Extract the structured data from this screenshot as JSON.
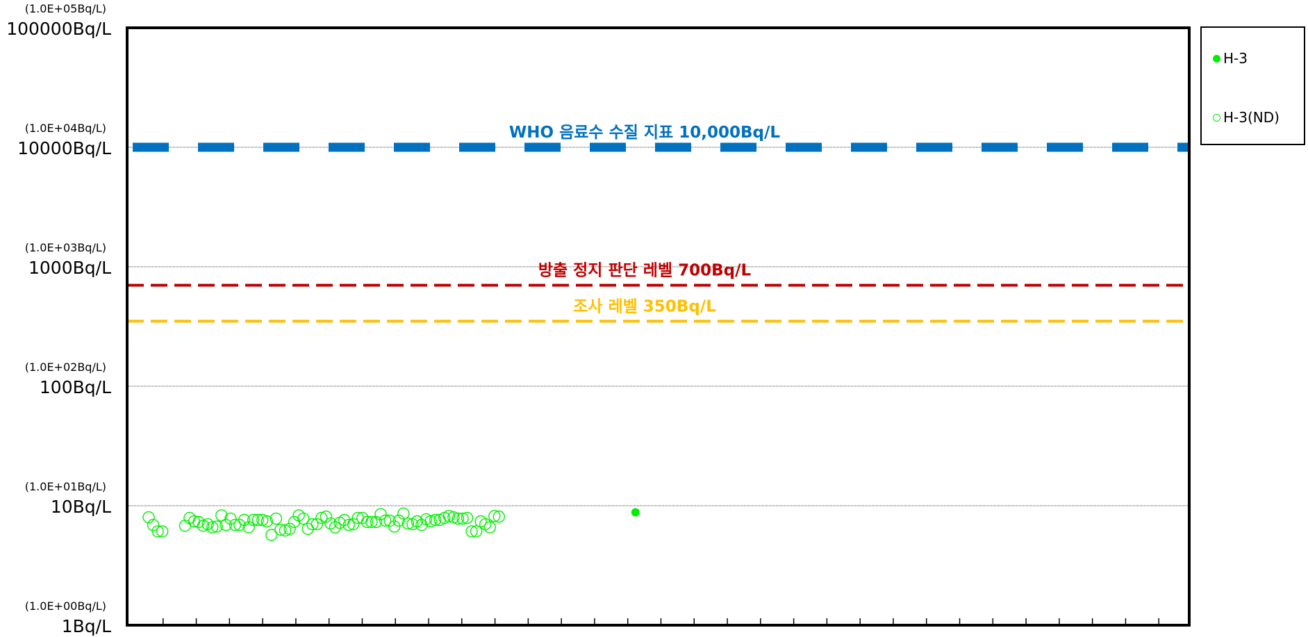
{
  "chart_data": {
    "type": "scatter",
    "title": "",
    "xlabel": "",
    "ylabel": "",
    "y_scale": "log",
    "ylim": [
      1,
      100000
    ],
    "x_tick_count": 31,
    "y_ticks": [
      {
        "value": 100000,
        "label": "100000Bq/L",
        "sublabel": "(1.0E+05Bq/L)"
      },
      {
        "value": 10000,
        "label": "10000Bq/L",
        "sublabel": "(1.0E+04Bq/L)"
      },
      {
        "value": 1000,
        "label": "1000Bq/L",
        "sublabel": "(1.0E+03Bq/L)"
      },
      {
        "value": 100,
        "label": "100Bq/L",
        "sublabel": "(1.0E+02Bq/L)"
      },
      {
        "value": 10,
        "label": "10Bq/L",
        "sublabel": "(1.0E+01Bq/L)"
      },
      {
        "value": 1,
        "label": "1Bq/L",
        "sublabel": "(1.0E+00Bq/L)"
      }
    ],
    "grid": true,
    "reference_lines": [
      {
        "label": "WHO 음료수 수질 지표 10,000Bq/L",
        "value": 10000,
        "color": "#0070c0",
        "style": "thick-dash"
      },
      {
        "label": "방출 정지 판단 레벨 700Bq/L",
        "value": 700,
        "color": "#c00000",
        "style": "dash"
      },
      {
        "label": "조사 레벨 350Bq/L",
        "value": 350,
        "color": "#ffc000",
        "style": "dash"
      }
    ],
    "legend_position": "right",
    "series": [
      {
        "name": "H-3",
        "color": "#00ee00",
        "marker": "filled-circle",
        "points": [
          [
            108,
            8.8
          ]
        ]
      },
      {
        "name": "H-3(ND)",
        "color": "#00ee00",
        "marker": "open-circle",
        "points": [
          [
            1,
            8.0
          ],
          [
            2,
            6.9
          ],
          [
            3,
            6.1
          ],
          [
            4,
            6.1
          ],
          [
            9,
            6.8
          ],
          [
            10,
            7.9
          ],
          [
            11,
            7.4
          ],
          [
            12,
            7.3
          ],
          [
            13,
            6.8
          ],
          [
            14,
            7.0
          ],
          [
            15,
            6.6
          ],
          [
            16,
            6.7
          ],
          [
            17,
            8.3
          ],
          [
            18,
            6.9
          ],
          [
            19,
            7.8
          ],
          [
            20,
            6.9
          ],
          [
            21,
            6.9
          ],
          [
            22,
            7.6
          ],
          [
            23,
            6.6
          ],
          [
            24,
            7.6
          ],
          [
            25,
            7.6
          ],
          [
            26,
            7.6
          ],
          [
            27,
            7.4
          ],
          [
            28,
            5.7
          ],
          [
            29,
            7.8
          ],
          [
            30,
            6.3
          ],
          [
            31,
            6.2
          ],
          [
            32,
            6.4
          ],
          [
            33,
            7.3
          ],
          [
            34,
            8.3
          ],
          [
            35,
            7.8
          ],
          [
            36,
            6.4
          ],
          [
            37,
            7.0
          ],
          [
            38,
            7.0
          ],
          [
            39,
            7.9
          ],
          [
            40,
            8.1
          ],
          [
            41,
            7.1
          ],
          [
            42,
            6.6
          ],
          [
            43,
            7.2
          ],
          [
            44,
            7.6
          ],
          [
            45,
            6.9
          ],
          [
            46,
            7.0
          ],
          [
            47,
            7.9
          ],
          [
            48,
            7.9
          ],
          [
            49,
            7.3
          ],
          [
            50,
            7.3
          ],
          [
            51,
            7.3
          ],
          [
            52,
            8.5
          ],
          [
            53,
            7.5
          ],
          [
            54,
            7.5
          ],
          [
            55,
            6.7
          ],
          [
            56,
            7.5
          ],
          [
            57,
            8.6
          ],
          [
            58,
            7.1
          ],
          [
            59,
            7.0
          ],
          [
            60,
            7.4
          ],
          [
            61,
            6.9
          ],
          [
            62,
            7.7
          ],
          [
            63,
            7.4
          ],
          [
            64,
            7.6
          ],
          [
            65,
            7.6
          ],
          [
            66,
            7.9
          ],
          [
            67,
            8.2
          ],
          [
            68,
            8.0
          ],
          [
            69,
            7.8
          ],
          [
            70,
            7.8
          ],
          [
            71,
            7.9
          ],
          [
            72,
            6.1
          ],
          [
            73,
            6.1
          ],
          [
            74,
            7.4
          ],
          [
            75,
            7.0
          ],
          [
            76,
            6.6
          ],
          [
            77,
            8.2
          ],
          [
            78,
            8.1
          ]
        ]
      }
    ]
  }
}
